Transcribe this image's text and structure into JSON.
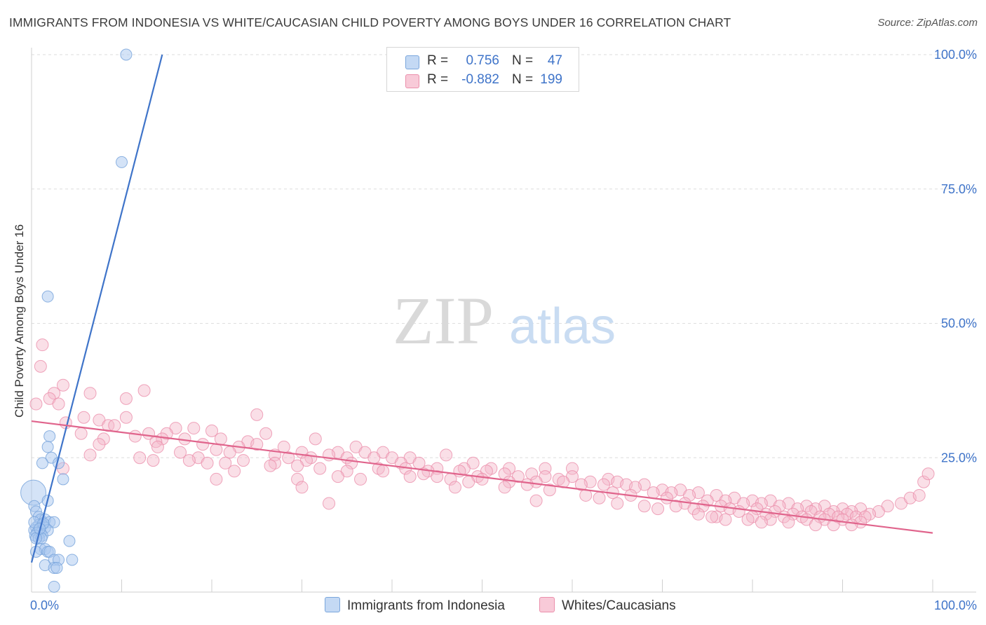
{
  "title": "IMMIGRANTS FROM INDONESIA VS WHITE/CAUCASIAN CHILD POVERTY AMONG BOYS UNDER 16 CORRELATION CHART",
  "source": "Source: ZipAtlas.com",
  "watermark": {
    "zip": "ZIP",
    "atlas": "atlas"
  },
  "legend": {
    "r_label": "R =",
    "n_label": "N =",
    "rows": [
      {
        "r": "0.756",
        "n": "47"
      },
      {
        "r": "-0.882",
        "n": "199"
      }
    ]
  },
  "colors": {
    "blue_fill": "#a9c8ef",
    "blue_stroke": "#7aa6dc",
    "blue_line": "#3f74c9",
    "pink_fill": "#f5b8ca",
    "pink_stroke": "#eb8fab",
    "pink_line": "#e0648c",
    "axis_label": "#3f74c9",
    "grid": "#dedede"
  },
  "chart_data": {
    "type": "scatter",
    "title": "IMMIGRANTS FROM INDONESIA VS WHITE/CAUCASIAN CHILD POVERTY AMONG BOYS UNDER 16 CORRELATION CHART",
    "xlabel": "",
    "ylabel": "Child Poverty Among Boys Under 16",
    "xlim": [
      0,
      100
    ],
    "ylim": [
      0,
      100
    ],
    "x_tick_labels": [
      "0.0%",
      "100.0%"
    ],
    "y_tick_labels": [
      "100.0%",
      "75.0%",
      "50.0%",
      "25.0%"
    ],
    "y_ticks": [
      100,
      75,
      50,
      25
    ],
    "series": [
      {
        "name": "Immigrants from Indonesia",
        "color": "#a9c8ef",
        "r": 0.756,
        "n": 47,
        "trend": {
          "x0": 0,
          "y0": 5.5,
          "x1": 14.5,
          "y1": 100
        },
        "points": [
          [
            10.5,
            100
          ],
          [
            10,
            80
          ],
          [
            1.8,
            55
          ],
          [
            2,
            29
          ],
          [
            1.8,
            27
          ],
          [
            2.2,
            25
          ],
          [
            1.2,
            24
          ],
          [
            3,
            24
          ],
          [
            3.5,
            21
          ],
          [
            0.2,
            18.5
          ],
          [
            1.8,
            17
          ],
          [
            0.3,
            16
          ],
          [
            0.5,
            15
          ],
          [
            0.8,
            14
          ],
          [
            1,
            13.5
          ],
          [
            1.5,
            13.5
          ],
          [
            2,
            13
          ],
          [
            2.5,
            13
          ],
          [
            1.2,
            12.5
          ],
          [
            0.8,
            12.5
          ],
          [
            1.5,
            12
          ],
          [
            0.5,
            12
          ],
          [
            1.8,
            11.5
          ],
          [
            0.3,
            11.5
          ],
          [
            1,
            11
          ],
          [
            0.6,
            11
          ],
          [
            1.2,
            10.5
          ],
          [
            0.4,
            10.5
          ],
          [
            0.8,
            10
          ],
          [
            1.1,
            10
          ],
          [
            0.5,
            10
          ],
          [
            4.2,
            9.5
          ],
          [
            1,
            8
          ],
          [
            1.5,
            8
          ],
          [
            1.8,
            7.5
          ],
          [
            2,
            7.5
          ],
          [
            0.5,
            7.5
          ],
          [
            2.5,
            6
          ],
          [
            3,
            6
          ],
          [
            4.5,
            6
          ],
          [
            1.5,
            5
          ],
          [
            2.5,
            4.5
          ],
          [
            2.8,
            4.5
          ],
          [
            2.5,
            1
          ],
          [
            0.3,
            13
          ],
          [
            1.3,
            12.8
          ],
          [
            0.9,
            11.8
          ]
        ]
      },
      {
        "name": "Whites/Caucasians",
        "color": "#f5b8ca",
        "r": -0.882,
        "n": 199,
        "trend": {
          "x0": 0,
          "y0": 31.8,
          "x1": 100,
          "y1": 11
        },
        "points": [
          [
            1.2,
            46
          ],
          [
            1,
            42
          ],
          [
            3.5,
            38.5
          ],
          [
            2.5,
            37
          ],
          [
            6.5,
            37
          ],
          [
            12.5,
            37.5
          ],
          [
            2,
            36
          ],
          [
            10.5,
            36
          ],
          [
            0.5,
            35
          ],
          [
            3,
            35
          ],
          [
            25,
            33
          ],
          [
            5.8,
            32.5
          ],
          [
            7.5,
            32
          ],
          [
            10.5,
            32.5
          ],
          [
            3.8,
            31.5
          ],
          [
            8.5,
            31
          ],
          [
            9.2,
            31
          ],
          [
            18,
            30.5
          ],
          [
            16,
            30.5
          ],
          [
            20,
            30
          ],
          [
            15,
            29.5
          ],
          [
            13,
            29.5
          ],
          [
            26,
            29.5
          ],
          [
            5.5,
            29.5
          ],
          [
            11.5,
            29
          ],
          [
            14.5,
            28.5
          ],
          [
            8,
            28.5
          ],
          [
            21,
            28.5
          ],
          [
            24,
            28
          ],
          [
            17,
            28.5
          ],
          [
            13.8,
            28
          ],
          [
            19,
            27.5
          ],
          [
            25,
            27.5
          ],
          [
            31.5,
            28.5
          ],
          [
            7.5,
            27.5
          ],
          [
            14,
            27
          ],
          [
            23,
            27
          ],
          [
            28,
            27
          ],
          [
            36,
            27
          ],
          [
            20.5,
            26.5
          ],
          [
            16.5,
            26
          ],
          [
            34,
            26
          ],
          [
            37,
            26
          ],
          [
            30,
            26
          ],
          [
            39,
            26
          ],
          [
            22,
            26
          ],
          [
            27,
            25.5
          ],
          [
            33,
            25.5
          ],
          [
            12,
            25
          ],
          [
            6.5,
            25.5
          ],
          [
            18.5,
            25
          ],
          [
            28.5,
            25
          ],
          [
            31,
            25
          ],
          [
            35,
            25
          ],
          [
            38,
            25
          ],
          [
            40,
            25
          ],
          [
            42,
            25
          ],
          [
            46,
            25.5
          ],
          [
            13.5,
            24.5
          ],
          [
            17.5,
            24.5
          ],
          [
            23.5,
            24.5
          ],
          [
            30.5,
            24.5
          ],
          [
            41,
            24
          ],
          [
            35.5,
            24
          ],
          [
            43,
            24
          ],
          [
            49,
            24
          ],
          [
            19.5,
            24
          ],
          [
            27,
            24
          ],
          [
            21.5,
            24
          ],
          [
            26.5,
            23.5
          ],
          [
            29.5,
            23.5
          ],
          [
            32,
            23
          ],
          [
            38.5,
            23
          ],
          [
            41.5,
            23
          ],
          [
            45,
            23
          ],
          [
            48,
            23
          ],
          [
            51,
            23
          ],
          [
            53,
            23
          ],
          [
            57,
            23
          ],
          [
            60,
            23
          ],
          [
            44,
            22.5
          ],
          [
            47.5,
            22.5
          ],
          [
            50.5,
            22.5
          ],
          [
            52.5,
            22
          ],
          [
            55.5,
            22
          ],
          [
            43.5,
            22
          ],
          [
            39,
            22.5
          ],
          [
            35,
            22.5
          ],
          [
            22.5,
            22.5
          ],
          [
            3.5,
            23
          ],
          [
            34,
            21.5
          ],
          [
            42,
            21.5
          ],
          [
            45,
            21.5
          ],
          [
            49.5,
            21.5
          ],
          [
            54,
            21.5
          ],
          [
            57,
            21.5
          ],
          [
            60,
            21.5
          ],
          [
            64,
            21
          ],
          [
            50,
            21
          ],
          [
            58.5,
            21
          ],
          [
            46.5,
            21
          ],
          [
            29.5,
            21
          ],
          [
            20.5,
            21
          ],
          [
            36.5,
            21
          ],
          [
            48.5,
            20.5
          ],
          [
            53,
            20.5
          ],
          [
            56,
            20.5
          ],
          [
            59,
            20.5
          ],
          [
            62,
            20.5
          ],
          [
            65,
            20.5
          ],
          [
            55,
            20
          ],
          [
            61,
            20
          ],
          [
            63.5,
            20
          ],
          [
            66,
            20
          ],
          [
            68,
            20
          ],
          [
            52.5,
            19.5
          ],
          [
            47,
            19.5
          ],
          [
            30,
            19.5
          ],
          [
            67,
            19.5
          ],
          [
            70,
            19
          ],
          [
            72,
            19
          ],
          [
            57.5,
            19
          ],
          [
            64.5,
            18.5
          ],
          [
            69,
            18.5
          ],
          [
            71,
            18.5
          ],
          [
            74,
            18.5
          ],
          [
            76,
            18
          ],
          [
            61.5,
            18
          ],
          [
            66.5,
            18
          ],
          [
            73,
            18
          ],
          [
            78,
            17.5
          ],
          [
            63,
            17.5
          ],
          [
            70.5,
            17.5
          ],
          [
            75,
            17
          ],
          [
            77,
            17
          ],
          [
            80,
            17
          ],
          [
            82,
            17
          ],
          [
            56,
            17
          ],
          [
            72.5,
            16.5
          ],
          [
            79,
            16.5
          ],
          [
            81,
            16.5
          ],
          [
            84,
            16.5
          ],
          [
            65,
            16.5
          ],
          [
            68,
            16
          ],
          [
            71.5,
            16
          ],
          [
            74.5,
            16
          ],
          [
            76.5,
            16
          ],
          [
            83,
            16
          ],
          [
            86,
            16
          ],
          [
            88,
            16
          ],
          [
            33,
            16.5
          ],
          [
            69.5,
            15.5
          ],
          [
            73.5,
            15.5
          ],
          [
            77.5,
            15.5
          ],
          [
            80.5,
            15.5
          ],
          [
            85,
            15.5
          ],
          [
            87,
            15.5
          ],
          [
            90,
            15.5
          ],
          [
            92,
            15.5
          ],
          [
            95,
            16
          ],
          [
            96.5,
            16.5
          ],
          [
            78.5,
            15
          ],
          [
            82.5,
            15
          ],
          [
            86.5,
            15
          ],
          [
            89,
            15
          ],
          [
            91,
            15
          ],
          [
            94,
            15
          ],
          [
            93,
            14.5
          ],
          [
            81.5,
            14.5
          ],
          [
            84.5,
            14.5
          ],
          [
            88.5,
            14.5
          ],
          [
            90.5,
            14.5
          ],
          [
            83.5,
            14
          ],
          [
            85.5,
            14
          ],
          [
            87.5,
            14
          ],
          [
            89.5,
            14
          ],
          [
            91.5,
            14
          ],
          [
            92.5,
            14
          ],
          [
            80,
            14
          ],
          [
            76,
            14
          ],
          [
            97.5,
            17.5
          ],
          [
            98.5,
            18
          ],
          [
            99,
            20.5
          ],
          [
            99.5,
            22
          ],
          [
            79.5,
            13.5
          ],
          [
            82,
            13.5
          ],
          [
            86,
            13.5
          ],
          [
            88,
            13.5
          ],
          [
            90,
            13.5
          ],
          [
            92,
            13
          ],
          [
            84,
            13
          ],
          [
            81,
            13
          ],
          [
            77,
            13.5
          ],
          [
            75.5,
            14
          ],
          [
            74,
            14.5
          ],
          [
            87,
            12.5
          ],
          [
            89,
            12.5
          ],
          [
            91,
            12.5
          ]
        ]
      }
    ]
  },
  "bottom_legend": [
    "Immigrants from Indonesia",
    "Whites/Caucasians"
  ]
}
